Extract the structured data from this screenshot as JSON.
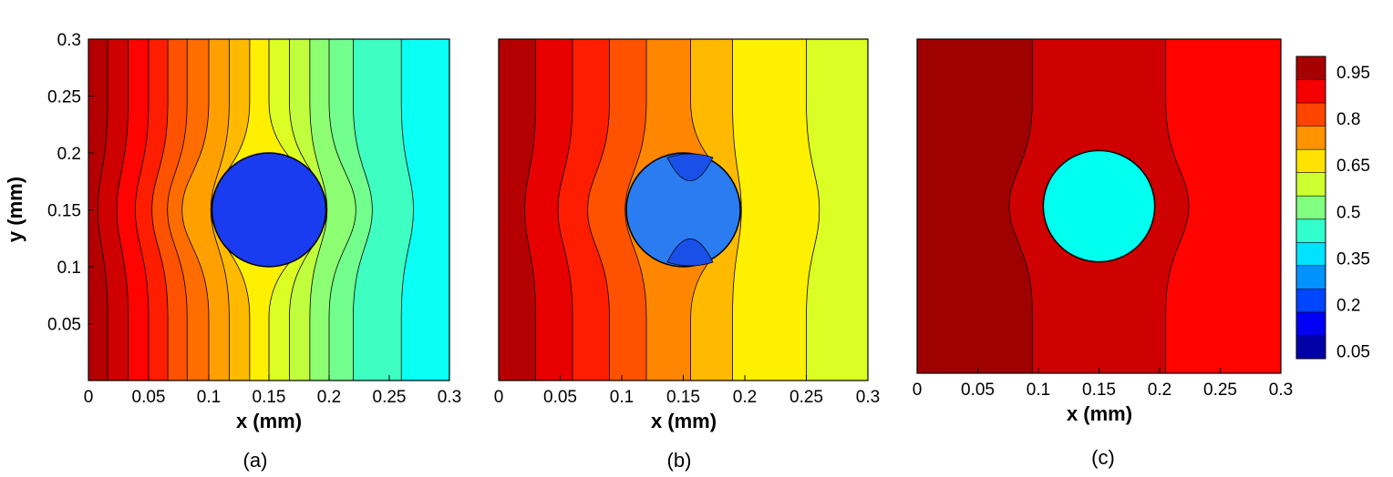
{
  "chart_data": [
    {
      "type": "heatmap",
      "panel_label": "(a)",
      "xlabel": "x (mm)",
      "ylabel": "y (mm)",
      "xlim": [
        0,
        0.3
      ],
      "ylim": [
        0,
        0.3
      ],
      "xticks": [
        "0",
        "0.05",
        "0.1",
        "0.15",
        "0.2",
        "0.25",
        "0.3"
      ],
      "yticks": [
        "0.05",
        "0.1",
        "0.15",
        "0.2",
        "0.25",
        "0.3"
      ],
      "inclusion": {
        "cx": 0.15,
        "cy": 0.15,
        "r": 0.05,
        "level": 0.05
      },
      "contour_lines_x": [
        0.016,
        0.033,
        0.05,
        0.066,
        0.082,
        0.1,
        0.117,
        0.134,
        0.15,
        0.167,
        0.184,
        0.2,
        0.22,
        0.26
      ],
      "band_levels": [
        0.95,
        0.925,
        0.875,
        0.85,
        0.8,
        0.775,
        0.725,
        0.7,
        0.65,
        0.6,
        0.575,
        0.525,
        0.5,
        0.45,
        0.4
      ],
      "colors": {
        "inclusion": "#1a3cf0"
      }
    },
    {
      "type": "heatmap",
      "panel_label": "(b)",
      "xlabel": "x (mm)",
      "ylabel": "",
      "xlim": [
        0,
        0.3
      ],
      "ylim": [
        0,
        0.3
      ],
      "xticks": [
        "0",
        "0.05",
        "0.1",
        "0.15",
        "0.2",
        "0.25",
        "0.3"
      ],
      "inclusion": {
        "cx": 0.15,
        "cy": 0.15,
        "r": 0.05,
        "level": 0.15
      },
      "contour_lines_x": [
        0.03,
        0.06,
        0.09,
        0.12,
        0.156,
        0.19,
        0.25
      ],
      "band_levels": [
        0.95,
        0.9,
        0.85,
        0.8,
        0.75,
        0.7,
        0.65,
        0.6
      ],
      "colors": {
        "inclusion": "#2a7cf0"
      }
    },
    {
      "type": "heatmap",
      "panel_label": "(c)",
      "xlabel": "x (mm)",
      "ylabel": "",
      "xlim": [
        0,
        0.3
      ],
      "ylim": [
        0,
        0.3
      ],
      "xticks": [
        "0",
        "0.05",
        "0.1",
        "0.15",
        "0.2",
        "0.25",
        "0.3"
      ],
      "inclusion": {
        "cx": 0.15,
        "cy": 0.15,
        "r": 0.05,
        "level": 0.3
      },
      "contour_lines_x": [
        0.095,
        0.205
      ],
      "band_levels": [
        0.97,
        0.925,
        0.875
      ],
      "colors": {
        "inclusion": "#00ffee"
      }
    }
  ],
  "colorbar": {
    "labels": [
      "0.95",
      "0.8",
      "0.65",
      "0.5",
      "0.35",
      "0.2",
      "0.05"
    ],
    "label_values": [
      0.95,
      0.8,
      0.65,
      0.5,
      0.35,
      0.2,
      0.05
    ],
    "range": [
      0.025,
      1.0
    ],
    "n_bands": 13
  }
}
